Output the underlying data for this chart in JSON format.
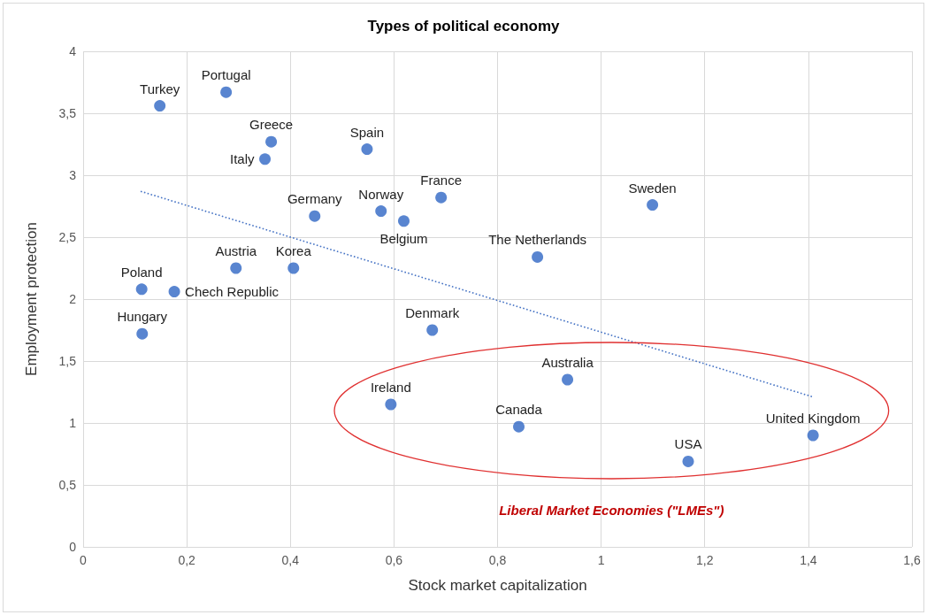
{
  "chart_data": {
    "type": "scatter",
    "title": "Types of political economy",
    "xlabel": "Stock market capitalization",
    "ylabel": "Employment protection",
    "series": [
      {
        "color": "#2f67c4",
        "marker": "circle",
        "x": [
          0.148,
          0.276,
          0.363,
          0.351,
          0.548,
          0.447,
          0.575,
          0.619,
          0.691,
          1.099,
          0.877,
          0.295,
          0.406,
          0.113,
          0.176,
          0.114,
          0.674,
          0.594,
          0.935,
          0.841,
          1.409,
          1.168
        ],
        "values": [
          3.56,
          3.67,
          3.27,
          3.13,
          3.21,
          2.67,
          2.71,
          2.63,
          2.82,
          2.76,
          2.34,
          2.25,
          2.25,
          2.08,
          2.06,
          1.72,
          1.75,
          1.15,
          1.35,
          0.97,
          0.9,
          0.69
        ]
      },
      {
        "type": "line",
        "color": "#4472c4",
        "line_style": "dotted",
        "marker": "none",
        "x": [
          0.111,
          1.409
        ],
        "values": [
          2.87,
          1.21
        ]
      }
    ],
    "annotations": [
      {
        "text": "Turkey",
        "x": 0.148,
        "y": 3.56
      },
      {
        "text": "Portugal",
        "x": 0.276,
        "y": 3.67
      },
      {
        "text": "Greece",
        "x": 0.363,
        "y": 3.27
      },
      {
        "text": "Italy",
        "x": 0.351,
        "y": 3.13
      },
      {
        "text": "Spain",
        "x": 0.548,
        "y": 3.21
      },
      {
        "text": "Germany",
        "x": 0.447,
        "y": 2.67
      },
      {
        "text": "Norway",
        "x": 0.575,
        "y": 2.71
      },
      {
        "text": "Belgium",
        "x": 0.619,
        "y": 2.63
      },
      {
        "text": "France",
        "x": 0.691,
        "y": 2.82
      },
      {
        "text": "Sweden",
        "x": 1.099,
        "y": 2.76
      },
      {
        "text": "The Netherlands",
        "x": 0.877,
        "y": 2.34
      },
      {
        "text": "Austria",
        "x": 0.295,
        "y": 2.25
      },
      {
        "text": "Korea",
        "x": 0.406,
        "y": 2.25
      },
      {
        "text": "Poland",
        "x": 0.113,
        "y": 2.08
      },
      {
        "text": "Chech Republic",
        "x": 0.176,
        "y": 2.06
      },
      {
        "text": "Hungary",
        "x": 0.114,
        "y": 1.72
      },
      {
        "text": "Denmark",
        "x": 0.674,
        "y": 1.75
      },
      {
        "text": "Ireland",
        "x": 0.594,
        "y": 1.15
      },
      {
        "text": "Australia",
        "x": 0.935,
        "y": 1.35
      },
      {
        "text": "Canada",
        "x": 0.841,
        "y": 0.97
      },
      {
        "text": "United Kingdom",
        "x": 1.409,
        "y": 0.9
      },
      {
        "text": "USA",
        "x": 1.168,
        "y": 0.69
      },
      "Liberal Market Economies (\"LMEs\")"
    ],
    "xlim": [
      0,
      1.6
    ],
    "xticks": [
      0,
      {
        "value": 0.2,
        "label": "0,2"
      },
      {
        "value": 0.4,
        "label": "0,4"
      },
      {
        "value": 0.6,
        "label": "0,6"
      },
      {
        "value": 0.8,
        "label": "0,8"
      },
      1,
      {
        "value": 1.2,
        "label": "1,2"
      },
      {
        "value": 1.4,
        "label": "1,4"
      },
      {
        "value": 1.6,
        "label": "1,6"
      }
    ],
    "ylim": [
      0,
      4
    ],
    "yticks": [
      0,
      {
        "value": 0.5,
        "label": "0,5"
      },
      1,
      {
        "value": 1.5,
        "label": "1,5"
      },
      2,
      {
        "value": 2.5,
        "label": "2,5"
      },
      3,
      {
        "value": 3.5,
        "label": "3,5"
      },
      4
    ],
    "grid": true
  }
}
